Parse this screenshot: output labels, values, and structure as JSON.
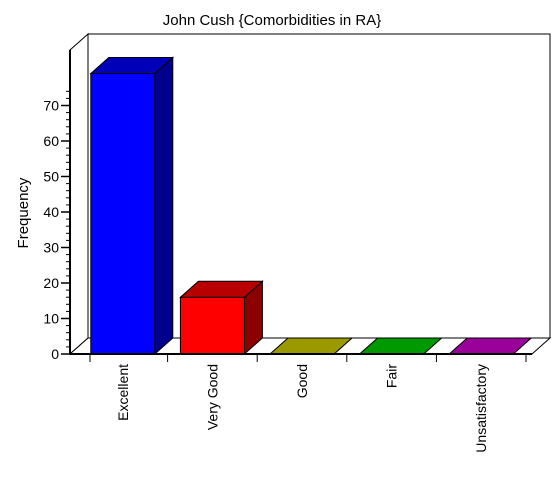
{
  "chart_data": {
    "type": "bar",
    "title": "John Cush {Comorbidities in RA}",
    "xlabel": "",
    "ylabel": "Frequency",
    "categories": [
      "Excellent",
      "Very Good",
      "Good",
      "Fair",
      "Unsatisfactory"
    ],
    "values": [
      79,
      16,
      0,
      0,
      0
    ],
    "colors": [
      "#0000ff",
      "#ff0000",
      "#c0c000",
      "#00c000",
      "#c000c0"
    ],
    "ylim": [
      0,
      80
    ],
    "yticks": [
      0,
      10,
      20,
      30,
      40,
      50,
      60,
      70
    ],
    "y_tick_labels": [
      "0",
      "10",
      "20",
      "30",
      "40",
      "50",
      "60",
      "70"
    ],
    "grid": false,
    "legend": "none",
    "style": "3d"
  }
}
